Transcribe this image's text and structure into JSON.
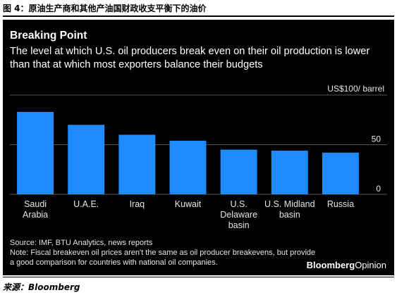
{
  "figure_caption": "图 4：原油生产商和其他产油国财政收支平衡下的油价",
  "footer_source": "来源：Bloomberg",
  "brand": {
    "part1": "Bloomberg",
    "part2": "Opinion"
  },
  "colors": {
    "background": "#000000",
    "bar": "#1e8cff",
    "axis_text": "#e6e6e6",
    "grid": "#555555"
  },
  "chart_data": {
    "type": "bar",
    "title": "Breaking Point",
    "subtitle": "The level at which U.S. oil producers break even on their oil production is lower than that at which most exporters balance their budgets",
    "unit_label": "US$100/ barrel",
    "categories": [
      [
        "Saudi",
        "Arabia"
      ],
      [
        "U.A.E."
      ],
      [
        "Iraq"
      ],
      [
        "Kuwait"
      ],
      [
        "U.S.",
        "Delaware",
        "basin"
      ],
      [
        "U.S. Midland",
        "basin"
      ],
      [
        "Russia"
      ]
    ],
    "values": [
      83,
      70,
      60,
      54,
      45,
      44,
      42
    ],
    "ylim": [
      0,
      100
    ],
    "yticks": [
      0,
      50,
      100
    ],
    "ytick_labels": [
      "0",
      "50",
      ""
    ],
    "grid": true,
    "legend": "none",
    "source": "Source: IMF, BTU Analytics, news reports",
    "note": "Note: Fiscal breakeven oil prices aren't the same as oil producer breakevens, but provide a good comparison for countries with national oil companies."
  }
}
